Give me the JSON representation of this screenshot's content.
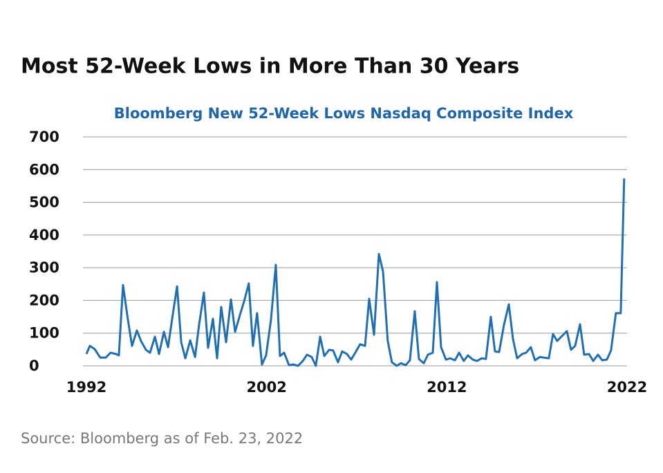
{
  "chart_data": {
    "type": "line",
    "title": "Most 52-Week Lows in More Than 30 Years",
    "subtitle": "Bloomberg New 52-Week Lows Nasdaq Composite Index",
    "source": "Source: Bloomberg as of Feb. 23, 2022",
    "xlim": [
      1992,
      2022
    ],
    "xticks": [
      1992,
      2002,
      2012,
      2022
    ],
    "ylim": [
      0,
      700
    ],
    "yticks": [
      0,
      100,
      200,
      300,
      400,
      500,
      600,
      700
    ],
    "grid": true,
    "x": [
      1992.0,
      1992.19,
      1992.46,
      1992.77,
      1993.07,
      1993.34,
      1993.65,
      1993.8,
      1994.03,
      1994.3,
      1994.53,
      1994.8,
      1995.03,
      1995.3,
      1995.53,
      1995.8,
      1996.03,
      1996.3,
      1996.53,
      1996.79,
      1997.03,
      1997.26,
      1997.49,
      1997.76,
      1998.03,
      1998.25,
      1998.52,
      1998.75,
      1999.02,
      1999.25,
      1999.48,
      1999.75,
      2000.02,
      2000.25,
      2000.52,
      2000.75,
      2001.01,
      2001.24,
      2001.47,
      2001.74,
      2001.97,
      2002.24,
      2002.51,
      2002.74,
      2002.97,
      2003.24,
      2003.47,
      2003.74,
      2004.01,
      2004.24,
      2004.5,
      2004.73,
      2004.97,
      2005.2,
      2005.47,
      2005.69,
      2005.96,
      2006.19,
      2006.46,
      2006.69,
      2006.96,
      2007.19,
      2007.46,
      2007.69,
      2007.96,
      2008.23,
      2008.46,
      2008.72,
      2008.95,
      2009.22,
      2009.45,
      2009.72,
      2009.95,
      2010.22,
      2010.45,
      2010.72,
      2010.95,
      2011.22,
      2011.45,
      2011.68,
      2011.95,
      2012.18,
      2012.45,
      2012.68,
      2012.94,
      2013.17,
      2013.44,
      2013.67,
      2013.94,
      2014.17,
      2014.44,
      2014.67,
      2014.9,
      2015.17,
      2015.44,
      2015.67,
      2015.9,
      2016.17,
      2016.4,
      2016.66,
      2016.89,
      2017.16,
      2017.39,
      2017.66,
      2017.89,
      2018.12,
      2018.39,
      2018.66,
      2018.89,
      2019.12,
      2019.39,
      2019.62,
      2019.89,
      2020.12,
      2020.39,
      2020.62,
      2020.88,
      2021.11,
      2021.38,
      2021.65,
      2021.84
    ],
    "series": [
      {
        "name": "Bloomberg New 52-Week Lows Nasdaq Composite Index",
        "color": "#1f6fb2",
        "values": [
          36,
          61,
          51,
          25,
          25,
          40,
          36,
          32,
          247,
          142,
          61,
          108,
          76,
          49,
          40,
          89,
          36,
          104,
          57,
          156,
          243,
          72,
          23,
          78,
          27,
          125,
          224,
          55,
          144,
          23,
          180,
          72,
          203,
          104,
          156,
          197,
          252,
          61,
          161,
          4,
          32,
          140,
          309,
          30,
          40,
          2,
          4,
          0,
          15,
          34,
          27,
          0,
          89,
          30,
          49,
          47,
          11,
          44,
          36,
          19,
          44,
          66,
          61,
          205,
          95,
          342,
          288,
          76,
          11,
          0,
          8,
          2,
          17,
          167,
          21,
          8,
          34,
          40,
          256,
          57,
          19,
          23,
          17,
          40,
          15,
          32,
          19,
          15,
          23,
          21,
          150,
          44,
          42,
          125,
          188,
          82,
          23,
          36,
          40,
          57,
          17,
          27,
          25,
          23,
          97,
          76,
          91,
          106,
          49,
          61,
          127,
          34,
          36,
          15,
          34,
          17,
          19,
          47,
          161,
          161,
          573
        ]
      }
    ]
  }
}
